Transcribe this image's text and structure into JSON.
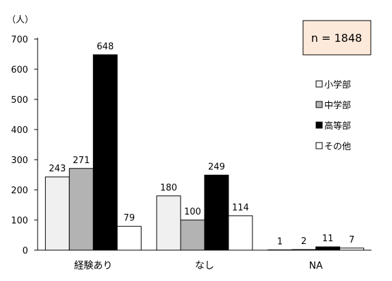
{
  "chart_data": {
    "type": "bar",
    "y_unit_label": "（人）",
    "ylim": [
      0,
      700
    ],
    "yticks": [
      0,
      100,
      200,
      300,
      400,
      500,
      600,
      700
    ],
    "categories": [
      "経験あり",
      "なし",
      "NA"
    ],
    "series": [
      {
        "name": "小学部",
        "color": "#f0f0f0",
        "values": [
          243,
          180,
          1
        ]
      },
      {
        "name": "中学部",
        "color": "#b3b3b3",
        "values": [
          271,
          100,
          2
        ]
      },
      {
        "name": "高等部",
        "color": "#000000",
        "values": [
          648,
          249,
          11
        ]
      },
      {
        "name": "その他",
        "color": "#ffffff",
        "values": [
          79,
          114,
          7
        ]
      }
    ],
    "annotation": "n = 1848",
    "annotation_bg": "#fde9d9",
    "legend_position": "right",
    "grid": false
  }
}
